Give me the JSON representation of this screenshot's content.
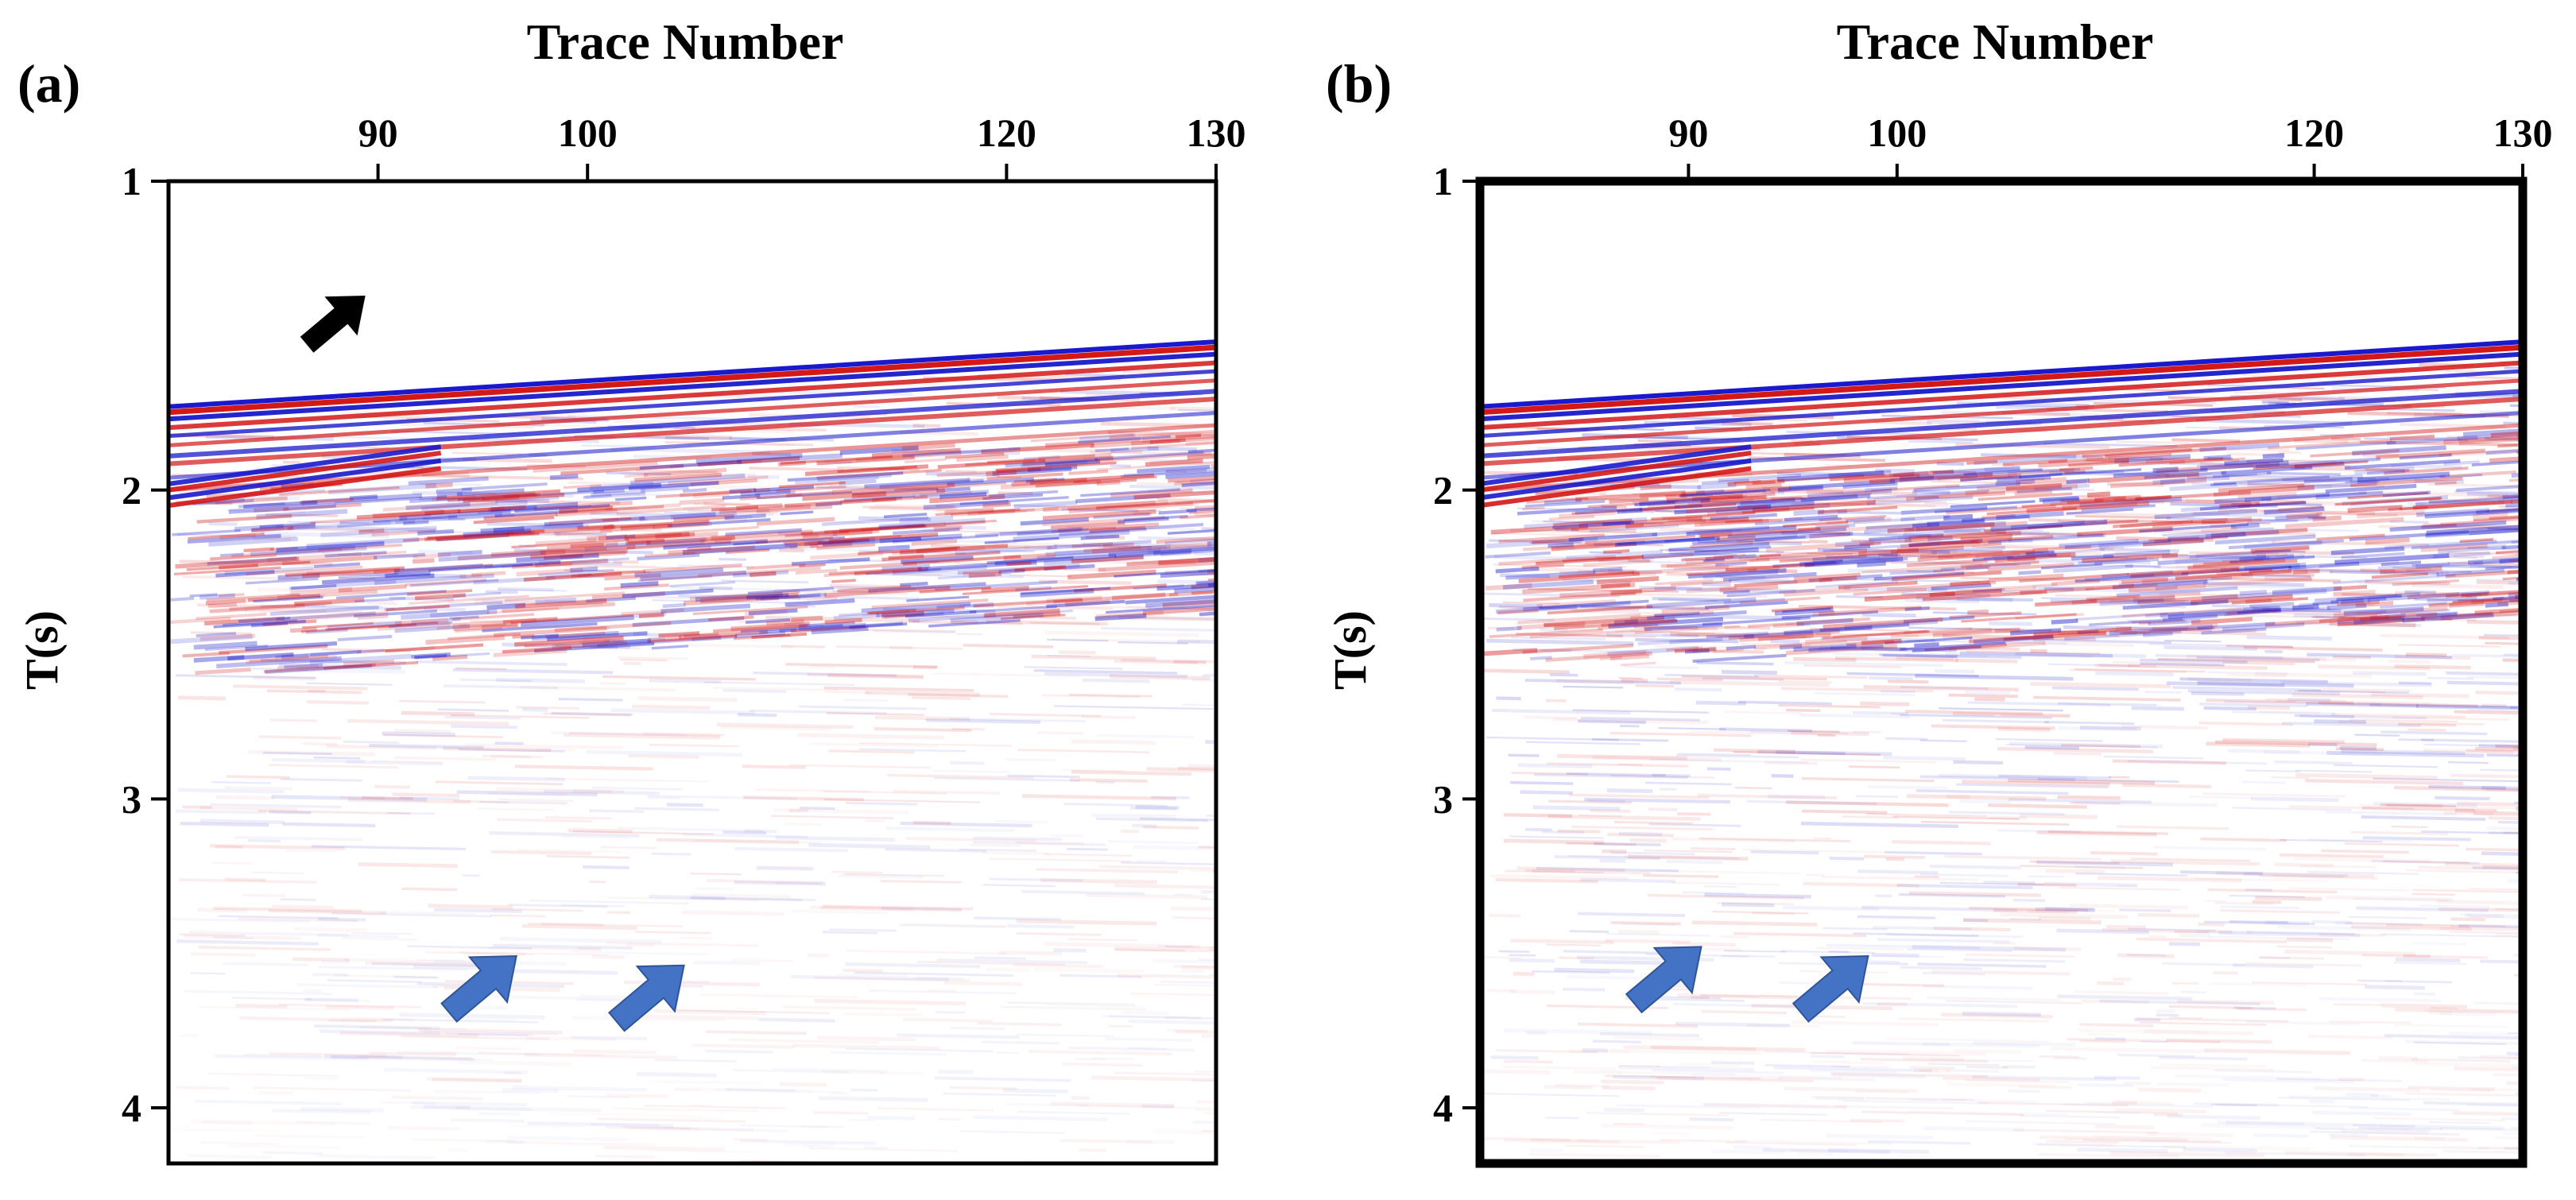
{
  "chart_data": [
    {
      "type": "heatmap",
      "panel_label": "(a)",
      "title": "Trace Number",
      "xlabel": "Trace Number",
      "ylabel": "T(s)",
      "xlim": [
        80,
        130
      ],
      "ylim": [
        4.18,
        1.0
      ],
      "x_ticks": [
        90,
        100,
        120,
        130
      ],
      "y_ticks": [
        1,
        2,
        3,
        4
      ],
      "x_tick_labels": [
        "90",
        "100",
        "120",
        "130"
      ],
      "y_tick_labels": [
        "1",
        "2",
        "3",
        "4"
      ],
      "first_arrival": {
        "trace": [
          80,
          130
        ],
        "time": [
          1.73,
          1.52
        ]
      },
      "colormap": {
        "negative": "#1a1acc",
        "positive": "#d41818",
        "zero": "#ffffff"
      },
      "noise_level": 0.5,
      "frame": "normal",
      "annotations": [
        {
          "type": "arrow",
          "color": "#000000",
          "trace": 88,
          "time": 1.45,
          "direction": "up-right"
        },
        {
          "type": "arrow",
          "color": "#4472c4",
          "trace": 95,
          "time": 3.6,
          "direction": "up-right"
        },
        {
          "type": "arrow",
          "color": "#4472c4",
          "trace": 103,
          "time": 3.63,
          "direction": "up-right"
        }
      ]
    },
    {
      "type": "heatmap",
      "panel_label": "(b)",
      "title": "Trace Number",
      "xlabel": "Trace Number",
      "ylabel": "T(s)",
      "xlim": [
        80,
        130
      ],
      "ylim": [
        4.18,
        1.0
      ],
      "x_ticks": [
        90,
        100,
        120,
        130
      ],
      "y_ticks": [
        1,
        2,
        3,
        4
      ],
      "x_tick_labels": [
        "90",
        "100",
        "120",
        "130"
      ],
      "y_tick_labels": [
        "1",
        "2",
        "3",
        "4"
      ],
      "first_arrival": {
        "trace": [
          80,
          130
        ],
        "time": [
          1.73,
          1.52
        ]
      },
      "colormap": {
        "negative": "#1a1acc",
        "positive": "#d41818",
        "zero": "#ffffff"
      },
      "noise_level": 1.0,
      "frame": "bold",
      "annotations": [
        {
          "type": "arrow",
          "color": "#4472c4",
          "trace": 89,
          "time": 3.57,
          "direction": "up-right"
        },
        {
          "type": "arrow",
          "color": "#4472c4",
          "trace": 97,
          "time": 3.6,
          "direction": "up-right"
        }
      ]
    }
  ]
}
